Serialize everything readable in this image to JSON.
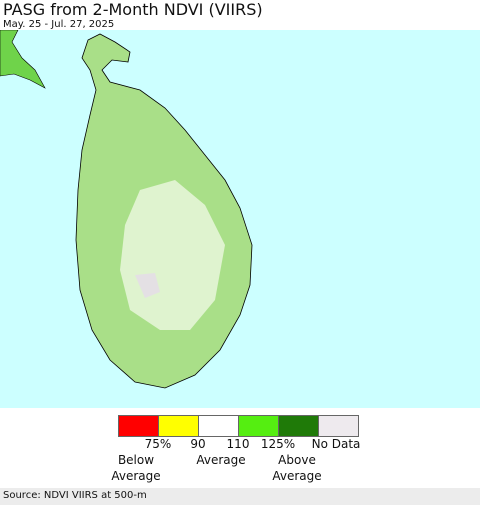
{
  "header": {
    "title": "PASG from 2-Month NDVI (VIIRS)",
    "subtitle": "May. 25 - Jul. 27, 2025"
  },
  "legend": {
    "colors": [
      "#ff0000",
      "#ffff00",
      "#ffffff",
      "#55ee11",
      "#1f7a08",
      "#eeeaee"
    ],
    "ticks": [
      "75%",
      "90",
      "110",
      "125%"
    ],
    "no_data": "No Data",
    "groups": [
      "Below Average",
      "Average",
      "Above Average"
    ]
  },
  "footer": {
    "source": "Source: NDVI VIIRS at 500-m"
  }
}
